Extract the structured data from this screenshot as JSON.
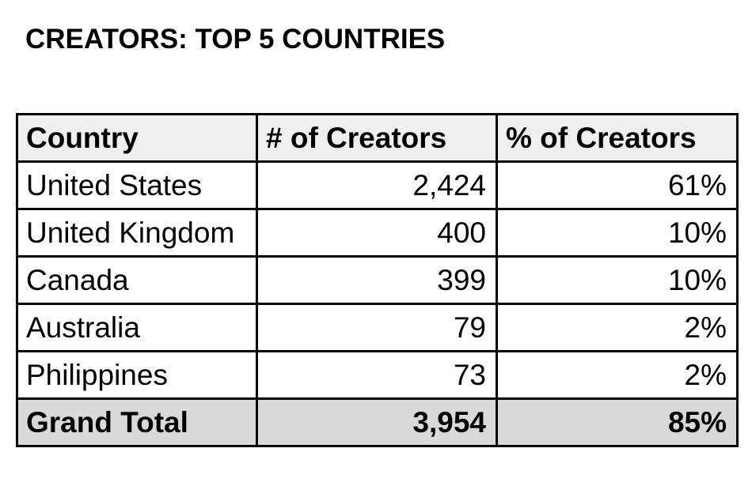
{
  "title": "CREATORS: TOP 5 COUNTRIES",
  "chart_data": {
    "type": "table",
    "title": "CREATORS: TOP 5 COUNTRIES",
    "columns": [
      "Country",
      "# of Creators",
      "% of Creators"
    ],
    "rows": [
      [
        "United States",
        "2,424",
        "61%"
      ],
      [
        "United Kingdom",
        "400",
        "10%"
      ],
      [
        "Canada",
        "399",
        "10%"
      ],
      [
        "Australia",
        "79",
        "2%"
      ],
      [
        "Philippines",
        "73",
        "2%"
      ]
    ],
    "total": [
      "Grand Total",
      "3,954",
      "85%"
    ]
  },
  "colors": {
    "header_background": "#efefef",
    "total_background": "#d9d9d9",
    "border": "#000000"
  }
}
